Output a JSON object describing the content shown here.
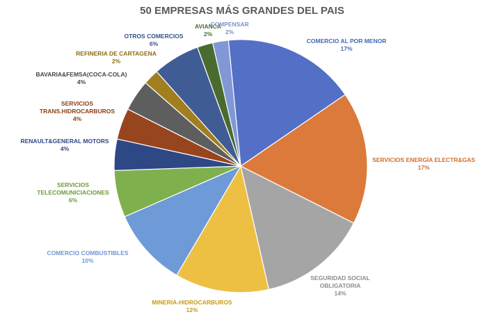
{
  "chart_data": {
    "type": "pie",
    "title": "50 EMPRESAS MÁS GRANDES DEL PAIS",
    "unit": "%",
    "slices": [
      {
        "label": [
          "COMERCIO AL POR MENOR"
        ],
        "value": 17,
        "pct": "17%",
        "color": "#5470C6"
      },
      {
        "label": [
          "SERVICIOS ENERGÍA ELECTR&GAS"
        ],
        "value": 17,
        "pct": "17%",
        "color": "#DC7A3B"
      },
      {
        "label": [
          "SEGURIDAD SOCIAL",
          "OBLIGATORIA"
        ],
        "value": 14,
        "pct": "14%",
        "color": "#A5A5A5"
      },
      {
        "label": [
          "MINERIA-HIDROCARBUROS"
        ],
        "value": 12,
        "pct": "12%",
        "color": "#EDC044"
      },
      {
        "label": [
          "COMERCIO COMBUSTIBLES"
        ],
        "value": 10,
        "pct": "10%",
        "color": "#6F9AD8"
      },
      {
        "label": [
          "SERVICIOS",
          "TELECOMUNICIACIONES"
        ],
        "value": 6,
        "pct": "6%",
        "color": "#7FB04E"
      },
      {
        "label": [
          "RENAULT&GENERAL MOTORS"
        ],
        "value": 4,
        "pct": "4%",
        "color": "#2E4785"
      },
      {
        "label": [
          "SERVICIOS",
          "TRANS.HIDROCARBUROS"
        ],
        "value": 4,
        "pct": "4%",
        "color": "#97451E"
      },
      {
        "label": [
          "BAVARIA&FEMSA(COCA-COLA)"
        ],
        "value": 4,
        "pct": "4%",
        "color": "#5E5E5E"
      },
      {
        "label": [
          "REFINERIA DE CARTAGENA"
        ],
        "value": 2,
        "pct": "2%",
        "color": "#A17E1F"
      },
      {
        "label": [
          "OTROS COMERCIOS"
        ],
        "value": 6,
        "pct": "6%",
        "color": "#3F5D94"
      },
      {
        "label": [
          "AVIANCA"
        ],
        "value": 2,
        "pct": "2%",
        "color": "#4A6B2F"
      },
      {
        "label": [
          "COMPENSAR"
        ],
        "value": 2,
        "pct": "2%",
        "color": "#8197D6"
      }
    ],
    "label_colors": [
      "#4467B8",
      "#D26E2C",
      "#8C8C8C",
      "#C89A12",
      "#6F96D0",
      "#6C9A3B",
      "#2E4785",
      "#8B3C16",
      "#454545",
      "#8E6C10",
      "#34518C",
      "#4A6B2F",
      "#7D92CF"
    ]
  }
}
